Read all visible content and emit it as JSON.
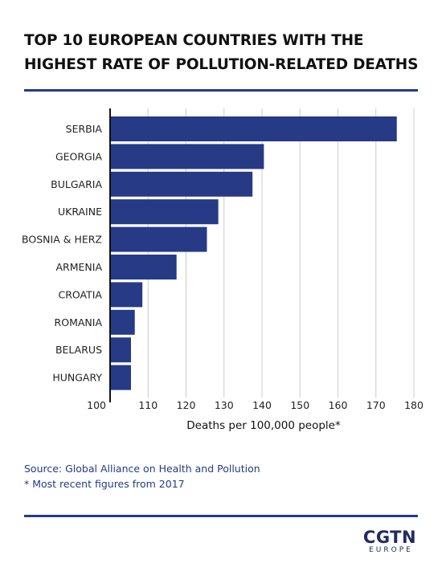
{
  "title": "TOP 10 EUROPEAN COUNTRIES WITH THE HIGHEST RATE OF POLLUTION-RELATED DEATHS",
  "source": "Source: Global Alliance on Health and Pollution",
  "footnote": "* Most recent figures from 2017",
  "logo": {
    "main": "CGTN",
    "sub": "EUROPE"
  },
  "colors": {
    "bar": "#263a86",
    "grid": "#cccccc",
    "axis": "#111111",
    "accent": "#263a86"
  },
  "chart_data": {
    "type": "bar",
    "orientation": "horizontal",
    "categories": [
      "SERBIA",
      "GEORGIA",
      "BULGARIA",
      "UKRAINE",
      "BOSNIA & HERZ",
      "ARMENIA",
      "CROATIA",
      "ROMANIA",
      "BELARUS",
      "HUNGARY"
    ],
    "values": [
      175.5,
      140.5,
      137.5,
      128.5,
      125.5,
      117.5,
      108.5,
      106.5,
      105.5,
      105.5
    ],
    "xlabel": "Deaths per 100,000 people*",
    "xlim": [
      100,
      180
    ],
    "xticks": [
      100,
      110,
      120,
      130,
      140,
      150,
      160,
      170,
      180
    ],
    "grid": true
  }
}
